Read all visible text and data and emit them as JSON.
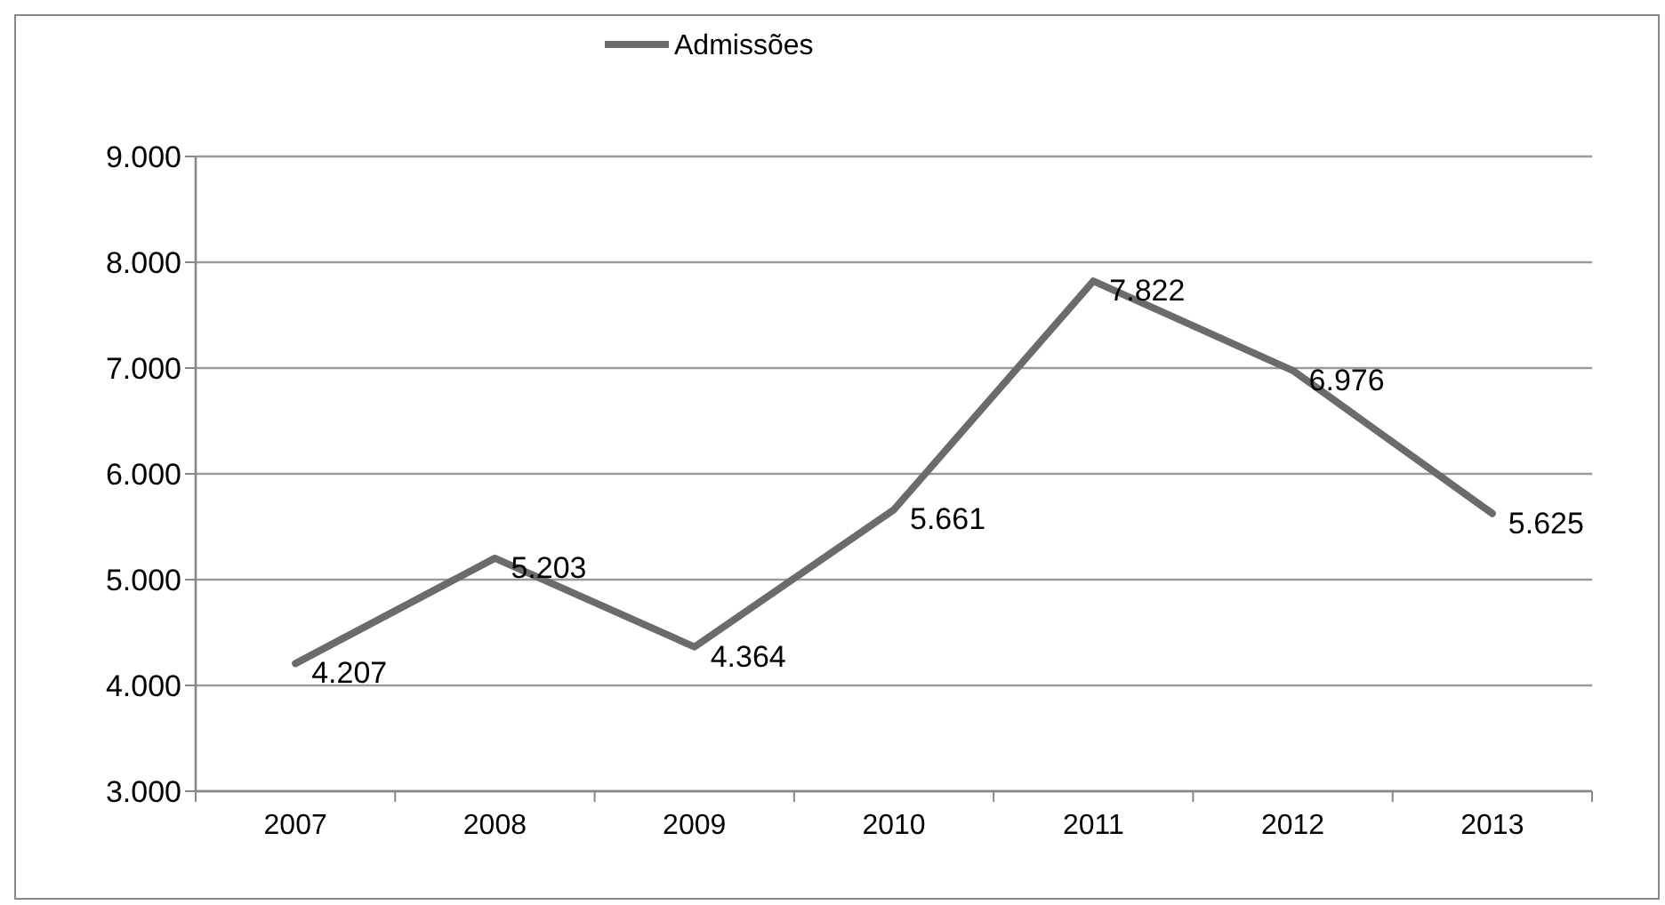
{
  "chart_data": {
    "type": "line",
    "categories": [
      "2007",
      "2008",
      "2009",
      "2010",
      "2011",
      "2012",
      "2013"
    ],
    "series": [
      {
        "name": "Admissões",
        "color": "#6b6b6b",
        "values": [
          4207,
          5203,
          4364,
          5661,
          7822,
          6976,
          5625
        ],
        "value_labels": [
          "4.207",
          "5.203",
          "4.364",
          "5.661",
          "7.822",
          "6.976",
          "5.625"
        ]
      }
    ],
    "ylim": [
      3000,
      9000
    ],
    "yticks": [
      {
        "value": 3000,
        "label": "3.000"
      },
      {
        "value": 4000,
        "label": "4.000"
      },
      {
        "value": 5000,
        "label": "5.000"
      },
      {
        "value": 6000,
        "label": "6.000"
      },
      {
        "value": 7000,
        "label": "7.000"
      },
      {
        "value": 8000,
        "label": "8.000"
      },
      {
        "value": 9000,
        "label": "9.000"
      }
    ],
    "grid": "y",
    "legend": "top",
    "marker": "none",
    "line_style": "solid"
  }
}
